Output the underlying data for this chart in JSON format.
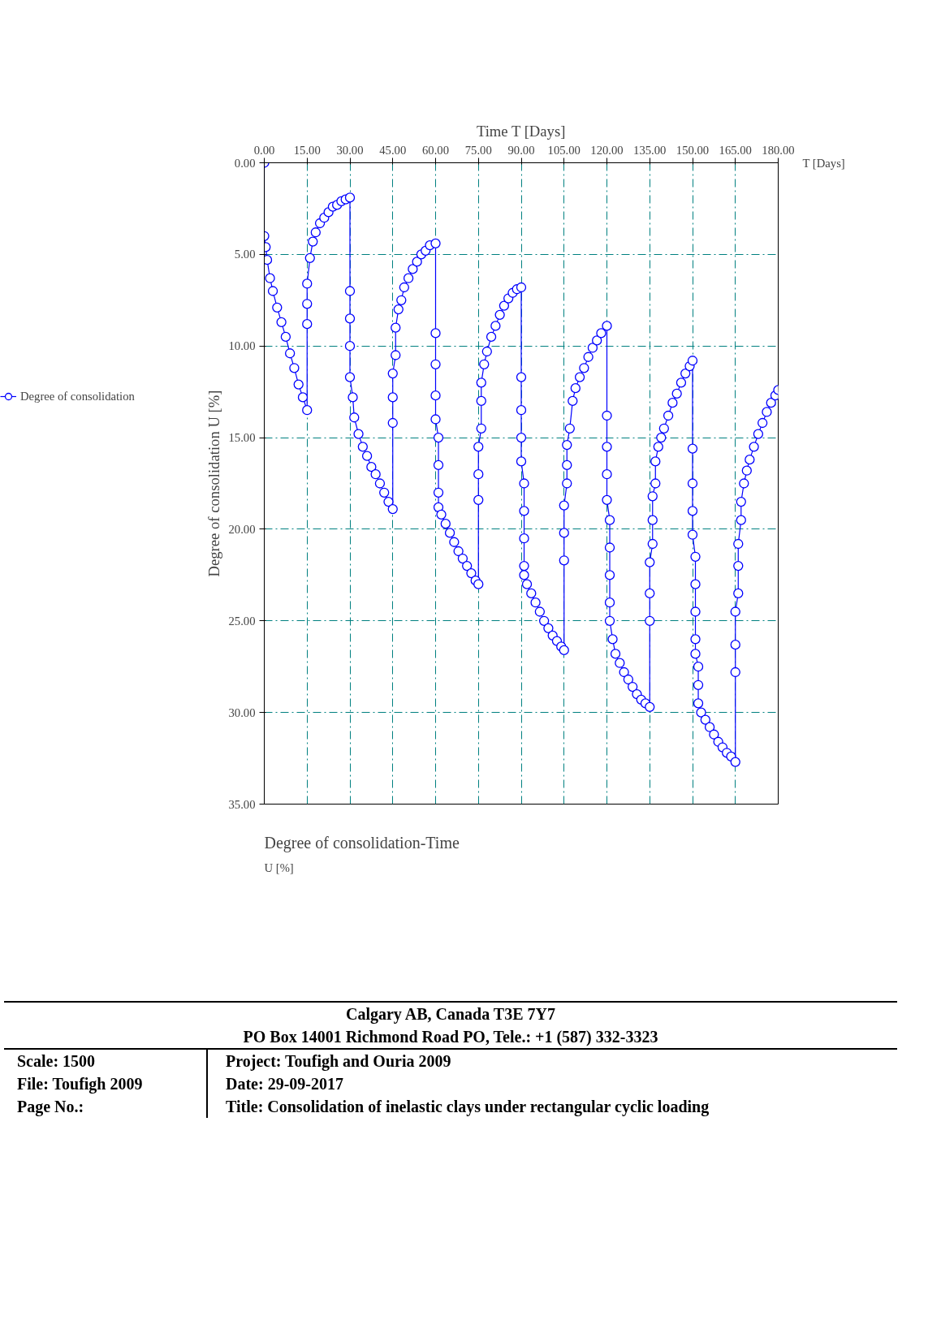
{
  "chart_data": {
    "type": "line",
    "title": "Degree of consolidation-Time",
    "xlabel": "Time T [Days]",
    "ylabel": "Degree of consolidation U [%]",
    "x": [
      0,
      0,
      0.5,
      1,
      2,
      3,
      4.5,
      6,
      7.5,
      9,
      10.5,
      12,
      13.5,
      15,
      15,
      15,
      15,
      16,
      17,
      18,
      19.5,
      21,
      22.5,
      24,
      25.5,
      27,
      28.5,
      30,
      30,
      30,
      30,
      30,
      31,
      31.5,
      33,
      34.5,
      36,
      37.5,
      39,
      40.5,
      42,
      43.5,
      45,
      45,
      45,
      45,
      46,
      46,
      47,
      48,
      49,
      50.5,
      52,
      53.5,
      55,
      56.5,
      58,
      60,
      60,
      60,
      60,
      60,
      61,
      61,
      61,
      61,
      62,
      63.5,
      65,
      66.5,
      68,
      69.5,
      71,
      72.5,
      74,
      75,
      75,
      75,
      75,
      76,
      76,
      76,
      77,
      78,
      79.5,
      81,
      82.5,
      84,
      85.5,
      87,
      88.5,
      90,
      90,
      90,
      90,
      90,
      91,
      91,
      91,
      91,
      91,
      92,
      93.5,
      95,
      96.5,
      98,
      99.5,
      101,
      102.5,
      104,
      105,
      105,
      105,
      105,
      106,
      106,
      106,
      107,
      108,
      109,
      110.5,
      112,
      113.5,
      115,
      116.5,
      118,
      120,
      120,
      120,
      120,
      120,
      121,
      121,
      121,
      121,
      121,
      122,
      123,
      124.5,
      126,
      127.5,
      129,
      130.5,
      132,
      133.5,
      135,
      135,
      135,
      135,
      136,
      136,
      136,
      137,
      137,
      138,
      139,
      140,
      141.5,
      143,
      144.5,
      146,
      147.5,
      149,
      150,
      150,
      150,
      150,
      150,
      151,
      151,
      151,
      151,
      151,
      152,
      152,
      152,
      153,
      154.5,
      156,
      157.5,
      159,
      160.5,
      162,
      163.5,
      165,
      165,
      165,
      165,
      166,
      166,
      166,
      167,
      167,
      168,
      169,
      170,
      171.5,
      173,
      174.5,
      176,
      177.5,
      179,
      180
    ],
    "series": [
      {
        "name": "Degree of consolidation",
        "color": "#0000ff",
        "values": [
          0,
          4,
          4.6,
          5.3,
          6.3,
          7,
          7.9,
          8.7,
          9.5,
          10.4,
          11.2,
          12.1,
          12.8,
          13.5,
          8.8,
          7.7,
          6.6,
          5.2,
          4.3,
          3.8,
          3.3,
          3.0,
          2.7,
          2.4,
          2.3,
          2.1,
          2.0,
          1.9,
          7.0,
          8.5,
          10,
          11.7,
          12.8,
          13.9,
          14.8,
          15.5,
          16.0,
          16.6,
          17.0,
          17.5,
          18.0,
          18.5,
          18.9,
          14.2,
          12.8,
          11.5,
          10.5,
          9.0,
          8.0,
          7.5,
          6.8,
          6.3,
          5.8,
          5.4,
          5.0,
          4.8,
          4.5,
          4.4,
          9.3,
          11,
          12.7,
          14.0,
          15.0,
          16.5,
          18.0,
          18.8,
          19.2,
          19.7,
          20.2,
          20.7,
          21.2,
          21.6,
          22.0,
          22.4,
          22.8,
          23.0,
          18.4,
          17,
          15.5,
          14.5,
          13,
          12.0,
          11,
          10.3,
          9.5,
          8.9,
          8.3,
          7.8,
          7.4,
          7.1,
          6.9,
          6.8,
          11.7,
          13.5,
          15,
          16.3,
          17.5,
          19,
          20.5,
          22.0,
          22.5,
          23.0,
          23.5,
          24.0,
          24.5,
          25.0,
          25.4,
          25.8,
          26.1,
          26.4,
          26.6,
          21.7,
          20.2,
          18.7,
          17.5,
          16.5,
          15.4,
          14.5,
          13,
          12.3,
          11.7,
          11.2,
          10.6,
          10.1,
          9.7,
          9.3,
          8.9,
          13.8,
          15.5,
          17,
          18.4,
          19.5,
          21,
          22.5,
          24,
          25.0,
          26.0,
          26.8,
          27.3,
          27.8,
          28.2,
          28.6,
          29.0,
          29.3,
          29.5,
          29.7,
          25.0,
          23.5,
          21.8,
          20.8,
          19.5,
          18.2,
          17.5,
          16.3,
          15.5,
          15.0,
          14.5,
          13.8,
          13.1,
          12.6,
          12.0,
          11.5,
          11.1,
          10.8,
          15.6,
          17.5,
          19,
          20.3,
          21.5,
          23,
          24.5,
          26,
          26.8,
          27.5,
          28.5,
          29.5,
          30.0,
          30.4,
          30.8,
          31.2,
          31.6,
          31.9,
          32.2,
          32.4,
          32.7,
          27.8,
          26.3,
          24.5,
          23.5,
          22,
          20.8,
          19.5,
          18.5,
          17.5,
          16.8,
          16.2,
          15.5,
          14.8,
          14.2,
          13.6,
          13.1,
          12.7,
          12.4
        ]
      }
    ],
    "xlim": [
      0,
      180
    ],
    "ylim": [
      35,
      0
    ],
    "xticks": [
      {
        "value": 0,
        "label": "0.00"
      },
      {
        "value": 15,
        "label": "15.00"
      },
      {
        "value": 30,
        "label": "30.00"
      },
      {
        "value": 45,
        "label": "45.00"
      },
      {
        "value": 60,
        "label": "60.00"
      },
      {
        "value": 75,
        "label": "75.00"
      },
      {
        "value": 90,
        "label": "90.00"
      },
      {
        "value": 105,
        "label": "105.00"
      },
      {
        "value": 120,
        "label": "120.00"
      },
      {
        "value": 135,
        "label": "135.00"
      },
      {
        "value": 150,
        "label": "150.00"
      },
      {
        "value": 165,
        "label": "165.00"
      },
      {
        "value": 180,
        "label": "180.00"
      }
    ],
    "yticks": [
      {
        "value": 0,
        "label": "0.00"
      },
      {
        "value": 5,
        "label": "5.00"
      },
      {
        "value": 10,
        "label": "10.00"
      },
      {
        "value": 15,
        "label": "15.00"
      },
      {
        "value": 20,
        "label": "20.00"
      },
      {
        "value": 25,
        "label": "25.00"
      },
      {
        "value": 30,
        "label": "30.00"
      },
      {
        "value": 35,
        "label": "35.00"
      }
    ],
    "grid": true,
    "legend": "left",
    "marker": "circle",
    "line_style": "solid",
    "annotations": [
      "T [Days]",
      "U [%]",
      "Calgary AB, Canada T3E 7Y7",
      "PO Box 14001 Richmond Road PO, Tele.: +1 (587) 332-3323",
      "Scale: 1500",
      "Project:  Toufigh and Ouria 2009",
      "File: Toufigh 2009",
      "Date: 29-09-2017",
      "Page No.:",
      "Title: Consolidation of inelastic clays under rectangular cyclic loading"
    ]
  }
}
